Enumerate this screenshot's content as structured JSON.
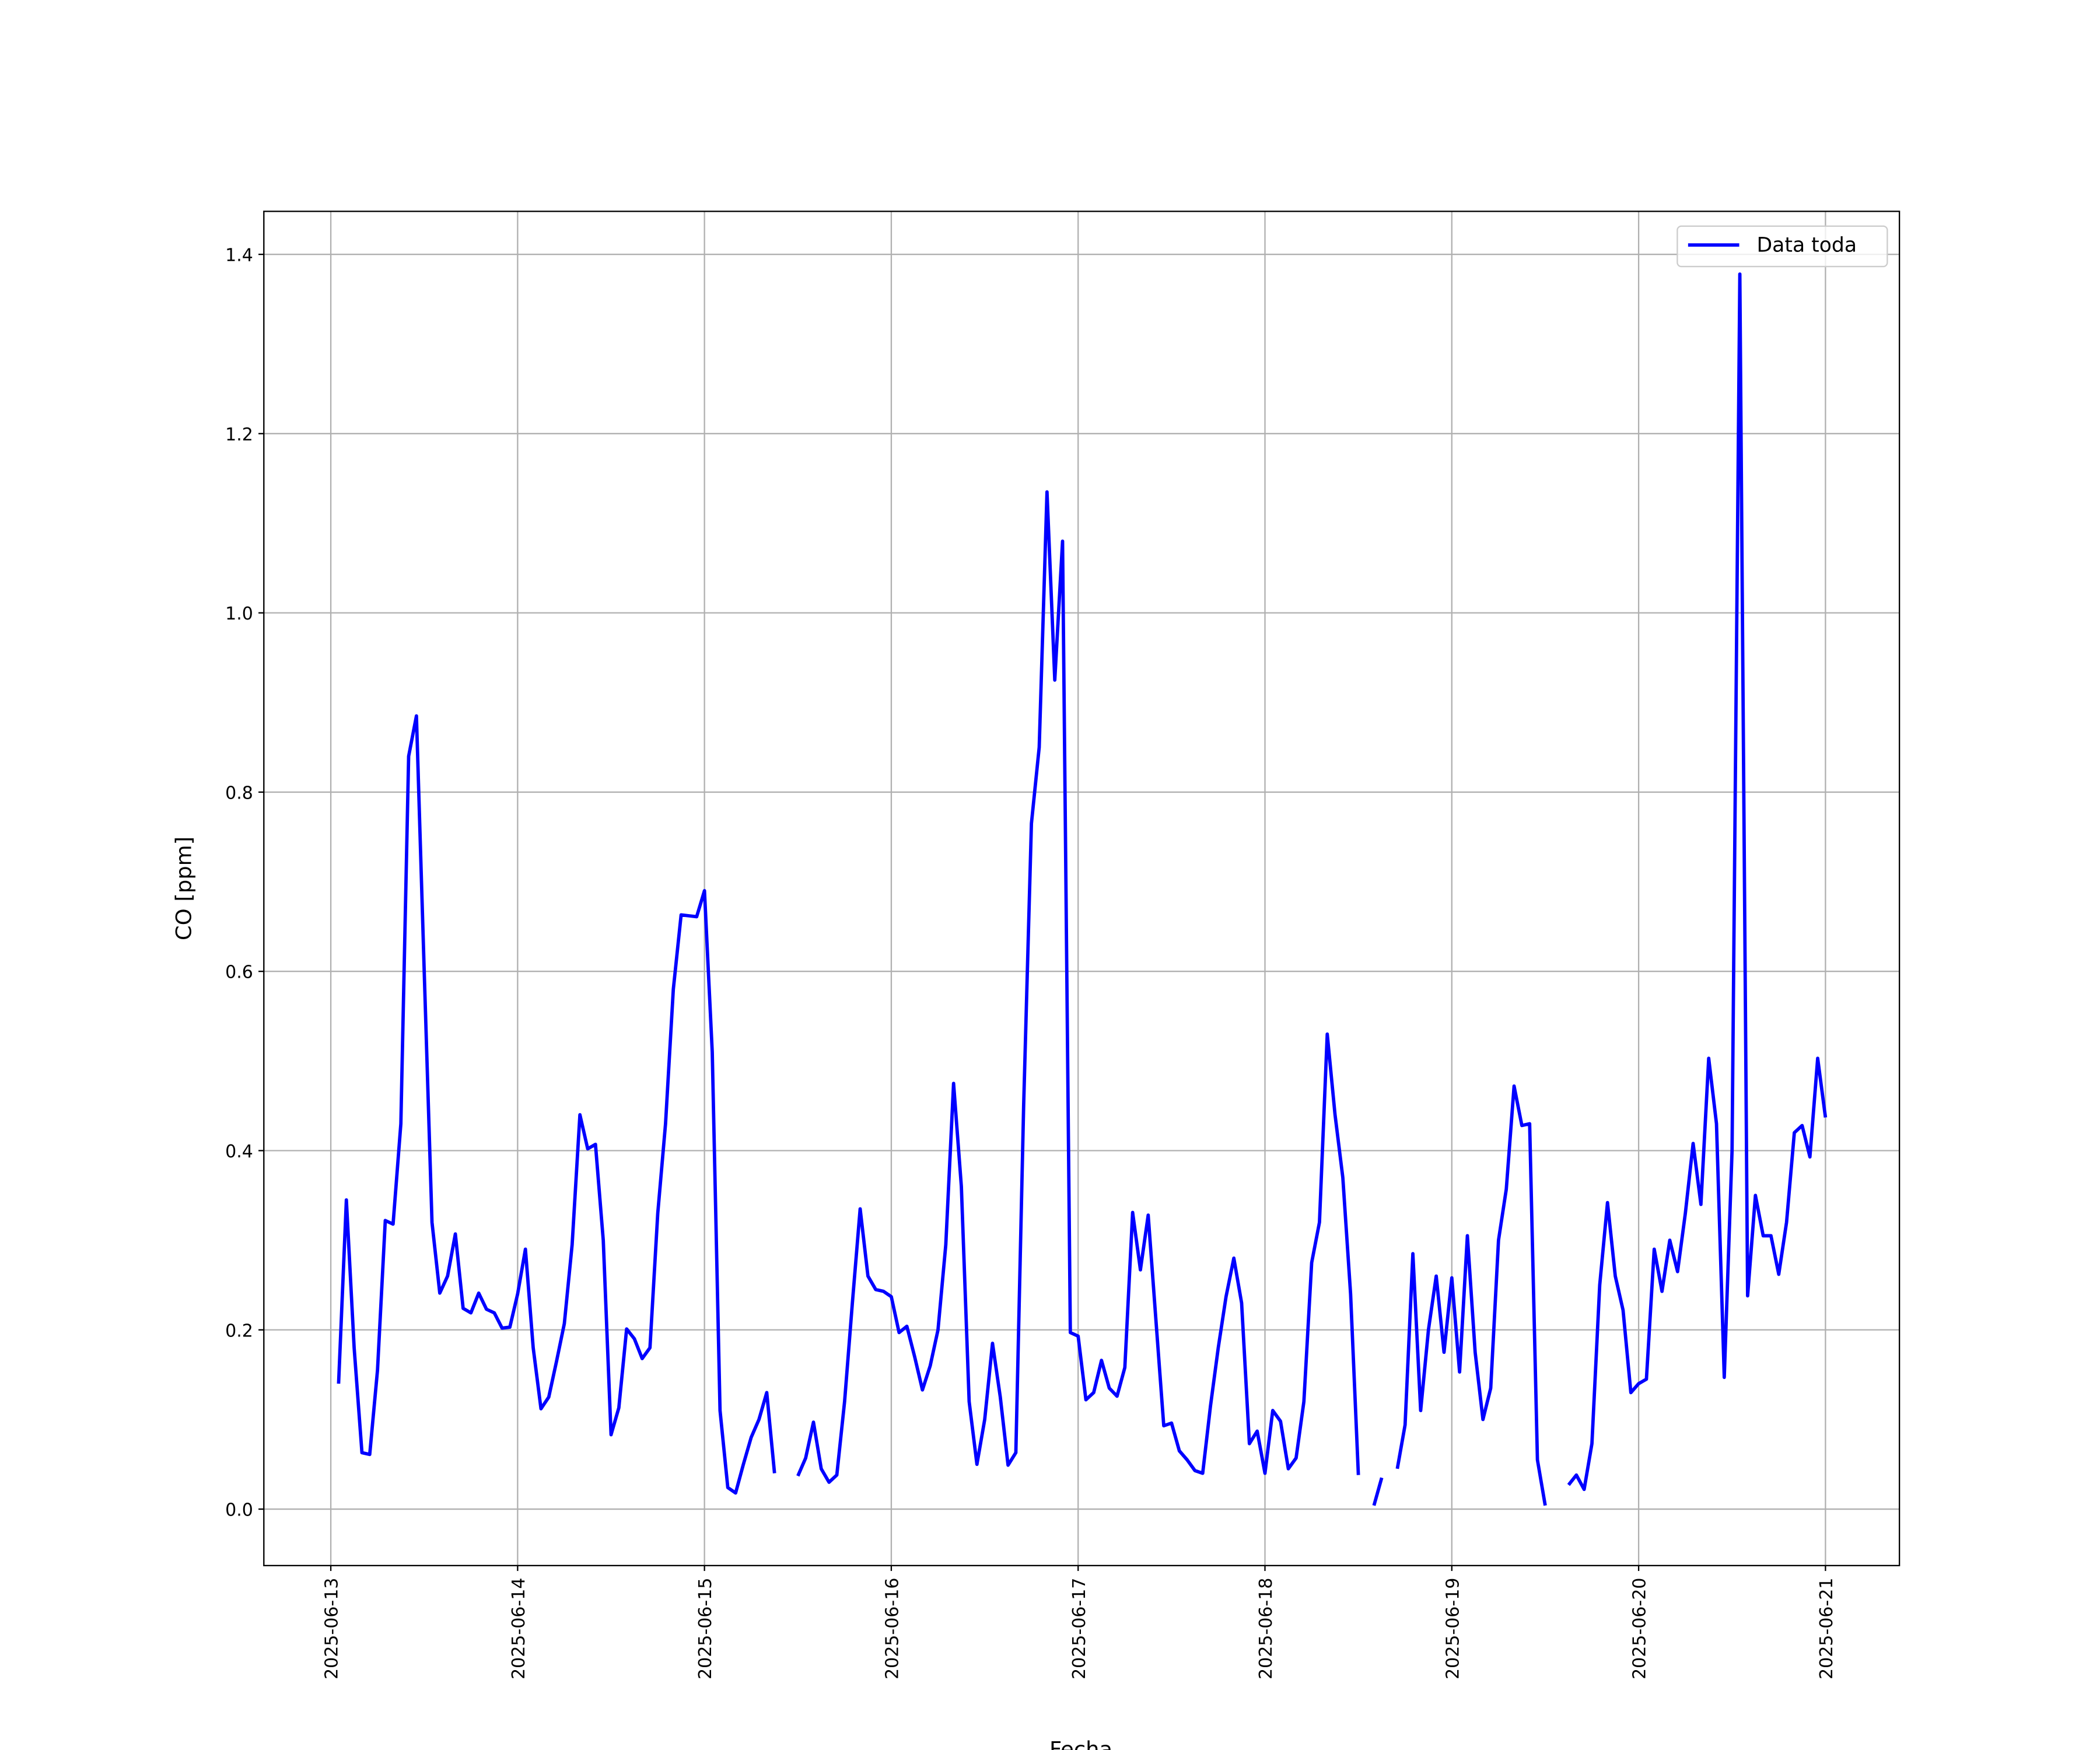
{
  "chart_data": {
    "type": "line",
    "xlabel": "Fecha",
    "ylabel": "CO [ppm]",
    "xlim": [
      "2025-06-12 15:24",
      "2025-06-21 09:30"
    ],
    "xticks": [
      "2025-06-13",
      "2025-06-14",
      "2025-06-15",
      "2025-06-16",
      "2025-06-17",
      "2025-06-18",
      "2025-06-19",
      "2025-06-20",
      "2025-06-21"
    ],
    "ylim": [
      -0.063,
      1.448
    ],
    "yticks": [
      {
        "value": 0,
        "label": "0.0"
      },
      0.2,
      0.4,
      0.6,
      0.8,
      {
        "value": 1,
        "label": "1.0"
      },
      1.2,
      1.4
    ],
    "grid": true,
    "legend": "upper right",
    "x": [
      "2025-06-13 01:00",
      "2025-06-13 02:00",
      "2025-06-13 03:00",
      "2025-06-13 04:00",
      "2025-06-13 05:00",
      "2025-06-13 06:00",
      "2025-06-13 07:00",
      "2025-06-13 08:00",
      "2025-06-13 09:00",
      "2025-06-13 10:00",
      "2025-06-13 11:00",
      "2025-06-13 12:00",
      "2025-06-13 13:00",
      "2025-06-13 14:00",
      "2025-06-13 15:00",
      "2025-06-13 16:00",
      "2025-06-13 17:00",
      "2025-06-13 18:00",
      "2025-06-13 19:00",
      "2025-06-13 20:00",
      "2025-06-13 21:00",
      "2025-06-13 22:00",
      "2025-06-13 23:00",
      "2025-06-14 00:00",
      "2025-06-14 01:00",
      "2025-06-14 02:00",
      "2025-06-14 03:00",
      "2025-06-14 04:00",
      "2025-06-14 05:00",
      "2025-06-14 06:00",
      "2025-06-14 07:00",
      "2025-06-14 08:00",
      "2025-06-14 09:00",
      "2025-06-14 10:00",
      "2025-06-14 11:00",
      "2025-06-14 12:00",
      "2025-06-14 13:00",
      "2025-06-14 14:00",
      "2025-06-14 15:00",
      "2025-06-14 16:00",
      "2025-06-14 17:00",
      "2025-06-14 18:00",
      "2025-06-14 19:00",
      "2025-06-14 20:00",
      "2025-06-14 21:00",
      "2025-06-14 22:00",
      "2025-06-14 23:00",
      "2025-06-15 00:00",
      "2025-06-15 01:00",
      "2025-06-15 02:00",
      "2025-06-15 03:00",
      "2025-06-15 04:00",
      "2025-06-15 05:00",
      "2025-06-15 06:00",
      "2025-06-15 07:00",
      "2025-06-15 08:00",
      "2025-06-15 09:00",
      "2025-06-15 10:00",
      "2025-06-15 11:00",
      "2025-06-15 12:00",
      "2025-06-15 13:00",
      "2025-06-15 14:00",
      "2025-06-15 15:00",
      "2025-06-15 16:00",
      "2025-06-15 17:00",
      "2025-06-15 18:00",
      "2025-06-15 19:00",
      "2025-06-15 20:00",
      "2025-06-15 21:00",
      "2025-06-15 22:00",
      "2025-06-15 23:00",
      "2025-06-16 00:00",
      "2025-06-16 01:00",
      "2025-06-16 02:00",
      "2025-06-16 03:00",
      "2025-06-16 04:00",
      "2025-06-16 05:00",
      "2025-06-16 06:00",
      "2025-06-16 07:00",
      "2025-06-16 08:00",
      "2025-06-16 09:00",
      "2025-06-16 10:00",
      "2025-06-16 11:00",
      "2025-06-16 12:00",
      "2025-06-16 13:00",
      "2025-06-16 14:00",
      "2025-06-16 15:00",
      "2025-06-16 16:00",
      "2025-06-16 17:00",
      "2025-06-16 18:00",
      "2025-06-16 19:00",
      "2025-06-16 20:00",
      "2025-06-16 21:00",
      "2025-06-16 22:00",
      "2025-06-16 23:00",
      "2025-06-17 00:00",
      "2025-06-17 01:00",
      "2025-06-17 02:00",
      "2025-06-17 03:00",
      "2025-06-17 04:00",
      "2025-06-17 05:00",
      "2025-06-17 06:00",
      "2025-06-17 07:00",
      "2025-06-17 08:00",
      "2025-06-17 09:00",
      "2025-06-17 10:00",
      "2025-06-17 11:00",
      "2025-06-17 12:00",
      "2025-06-17 13:00",
      "2025-06-17 14:00",
      "2025-06-17 15:00",
      "2025-06-17 16:00",
      "2025-06-17 17:00",
      "2025-06-17 18:00",
      "2025-06-17 19:00",
      "2025-06-17 20:00",
      "2025-06-17 21:00",
      "2025-06-17 22:00",
      "2025-06-17 23:00",
      "2025-06-18 00:00",
      "2025-06-18 01:00",
      "2025-06-18 02:00",
      "2025-06-18 03:00",
      "2025-06-18 04:00",
      "2025-06-18 05:00",
      "2025-06-18 06:00",
      "2025-06-18 07:00",
      "2025-06-18 08:00",
      "2025-06-18 09:00",
      "2025-06-18 10:00",
      "2025-06-18 11:00",
      "2025-06-18 12:00",
      "2025-06-18 13:00",
      "2025-06-18 14:00",
      "2025-06-18 15:00",
      "2025-06-18 16:00",
      "2025-06-18 17:00",
      "2025-06-18 18:00",
      "2025-06-18 19:00",
      "2025-06-18 20:00",
      "2025-06-18 21:00",
      "2025-06-18 22:00",
      "2025-06-18 23:00",
      "2025-06-19 00:00",
      "2025-06-19 01:00",
      "2025-06-19 02:00",
      "2025-06-19 03:00",
      "2025-06-19 04:00",
      "2025-06-19 05:00",
      "2025-06-19 06:00",
      "2025-06-19 07:00",
      "2025-06-19 08:00",
      "2025-06-19 09:00",
      "2025-06-19 10:00",
      "2025-06-19 11:00",
      "2025-06-19 12:00",
      "2025-06-19 13:00",
      "2025-06-19 14:00",
      "2025-06-19 15:00",
      "2025-06-19 16:00",
      "2025-06-19 17:00",
      "2025-06-19 18:00",
      "2025-06-19 19:00",
      "2025-06-19 20:00",
      "2025-06-19 21:00",
      "2025-06-19 22:00",
      "2025-06-19 23:00",
      "2025-06-20 00:00",
      "2025-06-20 01:00",
      "2025-06-20 02:00",
      "2025-06-20 03:00",
      "2025-06-20 04:00",
      "2025-06-20 05:00",
      "2025-06-20 06:00",
      "2025-06-20 07:00",
      "2025-06-20 08:00",
      "2025-06-20 09:00",
      "2025-06-20 10:00",
      "2025-06-20 11:00",
      "2025-06-20 12:00",
      "2025-06-20 13:00",
      "2025-06-20 14:00",
      "2025-06-20 15:00",
      "2025-06-20 16:00",
      "2025-06-20 17:00",
      "2025-06-20 18:00",
      "2025-06-20 19:00",
      "2025-06-20 20:00",
      "2025-06-20 21:00",
      "2025-06-20 22:00",
      "2025-06-20 23:00",
      "2025-06-21 00:00"
    ],
    "series": [
      {
        "name": "Data toda",
        "color": "#0000ff",
        "values": [
          0.14,
          0.345,
          0.18,
          0.063,
          0.061,
          0.155,
          0.322,
          0.318,
          0.43,
          0.84,
          0.885,
          0.6,
          0.32,
          0.241,
          0.26,
          0.307,
          0.224,
          0.219,
          0.241,
          0.223,
          0.219,
          0.202,
          0.203,
          0.24,
          0.29,
          0.18,
          0.112,
          0.125,
          0.165,
          0.207,
          0.295,
          0.44,
          0.402,
          0.407,
          0.3,
          0.083,
          0.113,
          0.201,
          0.19,
          0.168,
          0.18,
          0.33,
          0.43,
          0.58,
          0.663,
          0.662,
          0.661,
          0.69,
          0.51,
          0.11,
          0.024,
          0.018,
          0.05,
          0.08,
          0.1,
          0.13,
          0.04,
          null,
          null,
          0.037,
          0.057,
          0.097,
          0.045,
          0.03,
          0.038,
          0.12,
          0.23,
          0.335,
          0.26,
          0.245,
          0.243,
          0.237,
          0.197,
          0.204,
          0.17,
          0.133,
          0.16,
          0.2,
          0.295,
          0.475,
          0.36,
          0.12,
          0.05,
          0.1,
          0.185,
          0.125,
          0.049,
          0.063,
          0.45,
          0.765,
          0.85,
          1.135,
          0.925,
          1.08,
          0.197,
          0.193,
          0.122,
          0.13,
          0.166,
          0.135,
          0.126,
          0.158,
          0.331,
          0.267,
          0.328,
          0.21,
          0.093,
          0.096,
          0.065,
          0.055,
          0.043,
          0.04,
          0.115,
          0.18,
          0.237,
          0.28,
          0.23,
          0.073,
          0.087,
          0.04,
          0.11,
          0.098,
          0.045,
          0.057,
          0.12,
          0.275,
          0.32,
          0.53,
          0.44,
          0.37,
          0.24,
          0.038,
          null,
          0.004,
          0.035,
          null,
          0.045,
          0.094,
          0.285,
          0.11,
          0.2,
          0.26,
          0.175,
          0.258,
          0.153,
          0.305,
          0.175,
          0.1,
          0.135,
          0.3,
          0.357,
          0.472,
          0.428,
          0.43,
          0.055,
          0.004,
          null,
          null,
          0.027,
          0.038,
          0.022,
          0.073,
          0.25,
          0.342,
          0.26,
          0.222,
          0.13,
          0.14,
          0.145,
          0.29,
          0.243,
          0.3,
          0.265,
          0.33,
          0.408,
          0.34,
          0.503,
          0.43,
          0.147,
          0.4,
          1.378,
          0.238,
          0.35,
          0.305,
          0.305,
          0.262,
          0.32,
          0.42,
          0.428,
          0.393,
          0.503,
          0.437
        ]
      }
    ]
  }
}
